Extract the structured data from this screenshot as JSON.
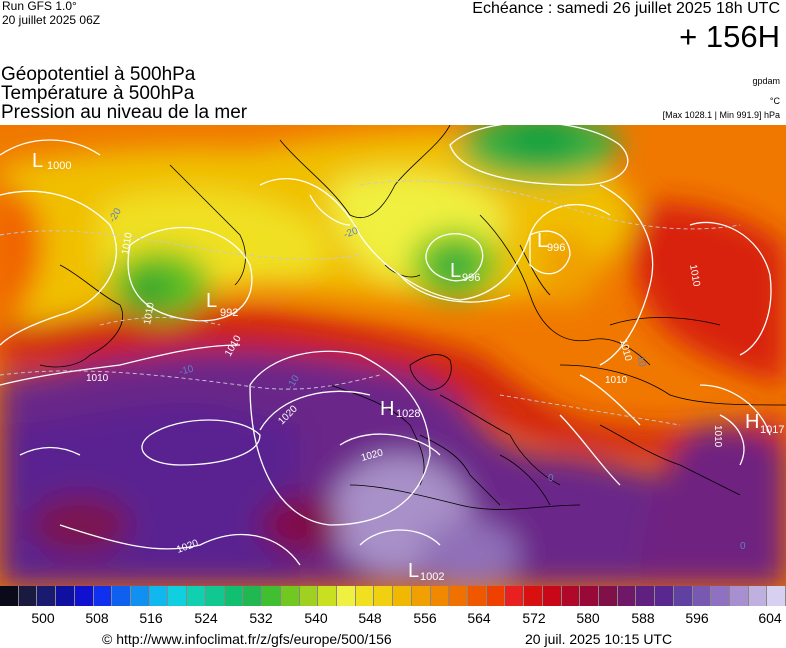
{
  "header": {
    "run_title": "Run GFS 1.0°",
    "run_date": "20 juillet 2025 06Z",
    "valid_time": "Echéance : samedi 26 juillet 2025 18h UTC",
    "lead_time": "+ 156H"
  },
  "layers": {
    "geopotential": "Géopotentiel à 500hPa",
    "temperature": "Température à 500hPa",
    "pressure": "Pression au niveau de la mer"
  },
  "units": {
    "geopotential": "gpdam",
    "temperature": "°C",
    "pressure_range": "[Max 1028.1 | Min 991.9] hPa"
  },
  "map": {
    "centers": [
      {
        "type": "L",
        "value": "1000"
      },
      {
        "type": "L",
        "value": "992"
      },
      {
        "type": "L",
        "value": "996"
      },
      {
        "type": "L",
        "value": "996"
      },
      {
        "type": "H",
        "value": "1028"
      },
      {
        "type": "H",
        "value": "1017"
      },
      {
        "type": "L",
        "value": "1002"
      }
    ],
    "isobar_labels": [
      "1010",
      "1010",
      "1010",
      "1010",
      "1010",
      "1010",
      "1010",
      "1020",
      "1020",
      "1020",
      "1010"
    ],
    "isotherm_labels": [
      "-20",
      "-20",
      "-10",
      "-10",
      "-10",
      "0",
      "0"
    ]
  },
  "colorbar": {
    "colors": [
      "#0a0a1a",
      "#1a1a40",
      "#1a1a70",
      "#1010a0",
      "#1010d0",
      "#1030f0",
      "#1060f0",
      "#1090f0",
      "#10b8f0",
      "#10d0e0",
      "#10d0b0",
      "#10c890",
      "#10c070",
      "#20b850",
      "#40c030",
      "#70c820",
      "#a0d020",
      "#c8e020",
      "#f0f040",
      "#f0e020",
      "#f0d010",
      "#f0b800",
      "#f0a000",
      "#f08800",
      "#f07000",
      "#f05800",
      "#f04000",
      "#e82020",
      "#d81010",
      "#c80818",
      "#b00828",
      "#980838",
      "#801048",
      "#701868",
      "#602080",
      "#582890",
      "#6040a0",
      "#7858b0",
      "#9070c0",
      "#a890d0",
      "#c0b0e0",
      "#d8d0f0"
    ],
    "ticks": [
      "500",
      "508",
      "516",
      "524",
      "532",
      "540",
      "548",
      "556",
      "564",
      "572",
      "580",
      "588",
      "596",
      "604"
    ]
  },
  "footer": {
    "url": "© http://www.infoclimat.fr/z/gfs/europe/500/156",
    "timestamp": "20 juil. 2025 10:15 UTC"
  }
}
